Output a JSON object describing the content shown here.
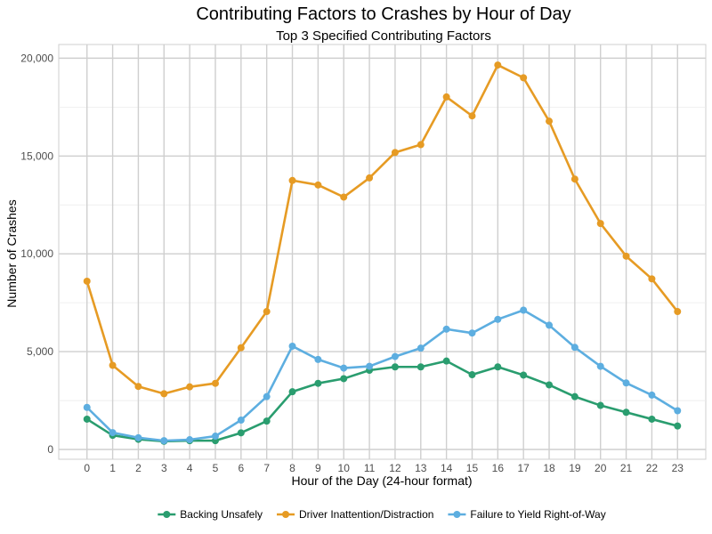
{
  "chart_data": {
    "type": "line",
    "title": "Contributing Factors to Crashes by Hour of Day",
    "subtitle": "Top 3 Specified Contributing Factors",
    "xlabel": "Hour of the Day (24-hour format)",
    "ylabel": "Number of Crashes",
    "x": [
      0,
      1,
      2,
      3,
      4,
      5,
      6,
      7,
      8,
      9,
      10,
      11,
      12,
      13,
      14,
      15,
      16,
      17,
      18,
      19,
      20,
      21,
      22,
      23
    ],
    "x_tick_labels": [
      "0",
      "1",
      "2",
      "3",
      "4",
      "5",
      "6",
      "7",
      "8",
      "9",
      "10",
      "11",
      "12",
      "13",
      "14",
      "15",
      "16",
      "17",
      "18",
      "19",
      "20",
      "21",
      "22",
      "23"
    ],
    "y_ticks": [
      0,
      5000,
      10000,
      15000,
      20000
    ],
    "y_tick_labels": [
      "0",
      "5,000",
      "10,000",
      "15,000",
      "20,000"
    ],
    "ylim": [
      -500,
      20700
    ],
    "xlim": [
      -1.1,
      24.1
    ],
    "grid": true,
    "legend_position": "bottom",
    "series": [
      {
        "name": "Backing Unsafely",
        "color": "#2a9d6f",
        "values": [
          1550,
          720,
          520,
          420,
          450,
          450,
          850,
          1450,
          2950,
          3380,
          3620,
          4050,
          4220,
          4220,
          4520,
          3820,
          4220,
          3800,
          3300,
          2700,
          2250,
          1900,
          1550,
          1200
        ]
      },
      {
        "name": "Driver Inattention/Distraction",
        "color": "#e69b24",
        "values": [
          8600,
          4300,
          3220,
          2850,
          3200,
          3380,
          5200,
          7050,
          13750,
          13520,
          12900,
          13880,
          15180,
          15580,
          18020,
          17050,
          19650,
          19000,
          16780,
          13820,
          11550,
          9880,
          8720,
          7050
        ]
      },
      {
        "name": "Failure to Yield Right-of-Way",
        "color": "#5daee0",
        "values": [
          2150,
          860,
          600,
          450,
          500,
          680,
          1500,
          2700,
          5280,
          4600,
          4160,
          4250,
          4750,
          5180,
          6150,
          5950,
          6650,
          7120,
          6350,
          5220,
          4250,
          3400,
          2780,
          1980
        ]
      }
    ]
  }
}
